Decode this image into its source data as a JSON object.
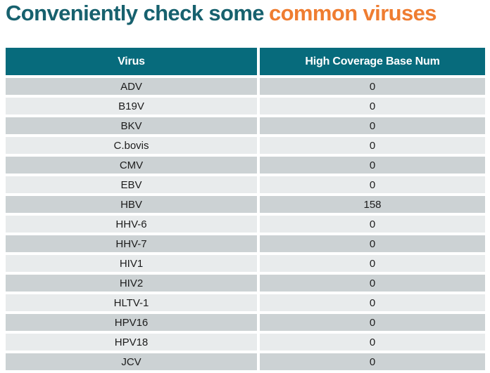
{
  "title": {
    "teal_text": "Conveniently check some",
    "orange_text": "common viruses"
  },
  "table": {
    "columns": [
      "Virus",
      "High Coverage Base Num"
    ],
    "rows": [
      [
        "ADV",
        "0"
      ],
      [
        "B19V",
        "0"
      ],
      [
        "BKV",
        "0"
      ],
      [
        "C.bovis",
        "0"
      ],
      [
        "CMV",
        "0"
      ],
      [
        "EBV",
        "0"
      ],
      [
        "HBV",
        "158"
      ],
      [
        "HHV-6",
        "0"
      ],
      [
        "HHV-7",
        "0"
      ],
      [
        "HIV1",
        "0"
      ],
      [
        "HIV2",
        "0"
      ],
      [
        "HLTV-1",
        "0"
      ],
      [
        "HPV16",
        "0"
      ],
      [
        "HPV18",
        "0"
      ],
      [
        "JCV",
        "0"
      ]
    ]
  },
  "chart_data": {
    "type": "table",
    "title": "Conveniently check some common viruses",
    "columns": [
      "Virus",
      "High Coverage Base Num"
    ],
    "categories": [
      "ADV",
      "B19V",
      "BKV",
      "C.bovis",
      "CMV",
      "EBV",
      "HBV",
      "HHV-6",
      "HHV-7",
      "HIV1",
      "HIV2",
      "HLTV-1",
      "HPV16",
      "HPV18",
      "JCV"
    ],
    "values": [
      0,
      0,
      0,
      0,
      0,
      0,
      158,
      0,
      0,
      0,
      0,
      0,
      0,
      0,
      0
    ]
  },
  "colors": {
    "title_teal": "#17616e",
    "title_orange": "#ef7d31",
    "header_background": "#076b7c",
    "header_text": "#ffffff",
    "row_dark": "#ccd2d4",
    "row_light": "#e8ebec",
    "cell_text": "#1c1c1c"
  }
}
